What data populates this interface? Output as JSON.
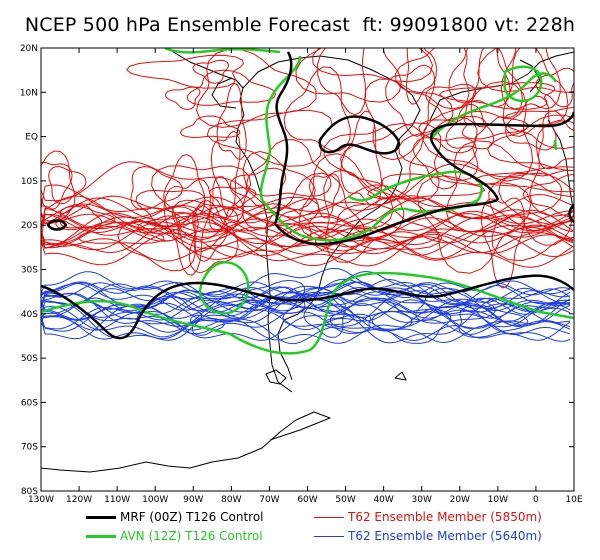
{
  "title": "NCEP 500 hPa Ensemble Forecast  ft: 99091800 vt: 228h",
  "lat_labels": [
    "20N",
    "10N",
    "EQ",
    "10S",
    "20S",
    "30S",
    "40S",
    "50S",
    "60S",
    "70S",
    "80S"
  ],
  "lon_labels": [
    "130W",
    "120W",
    "110W",
    "100W",
    "90W",
    "80W",
    "70W",
    "60W",
    "50W",
    "40W",
    "30W",
    "20W",
    "10W",
    "0",
    "10E"
  ],
  "legend": [
    {
      "label": "MRF (00Z) T126 Control",
      "color": "#000000",
      "width": 3
    },
    {
      "label": "AVN (12Z) T126 Control",
      "color": "#22cc22",
      "width": 3
    },
    {
      "label": "T62 Ensemble Member (5850m)",
      "color": "#e01010",
      "width": 1
    },
    {
      "label": "T62 Ensemble Member (5640m)",
      "color": "#2040e0",
      "width": 1
    }
  ],
  "colors": {
    "coast": "#000000",
    "mrf": "#000000",
    "avn": "#22cc22",
    "member_5850": "#e01010",
    "member_5640": "#2040e0"
  }
}
